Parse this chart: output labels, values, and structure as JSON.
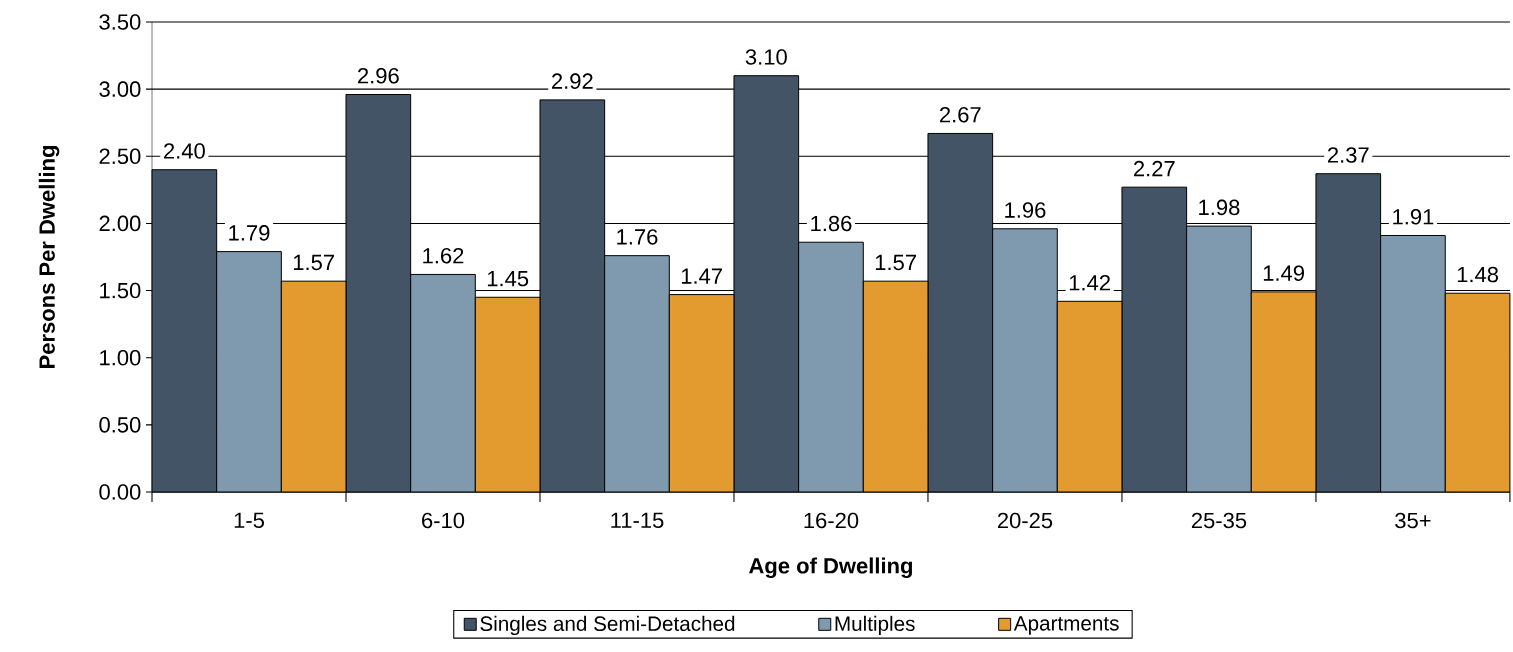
{
  "chart_data": {
    "type": "bar",
    "xlabel": "Age of Dwelling",
    "ylabel": "Persons Per Dwelling",
    "categories": [
      "1-5",
      "6-10",
      "11-15",
      "16-20",
      "20-25",
      "25-35",
      "35+"
    ],
    "series": [
      {
        "name": "Singles and Semi-Detached",
        "color": "#425466",
        "values": [
          2.4,
          2.96,
          2.92,
          3.1,
          2.67,
          2.27,
          2.37
        ],
        "value_labels": [
          "2.40",
          "2.96",
          "2.92",
          "3.10",
          "2.67",
          "2.27",
          "2.37"
        ]
      },
      {
        "name": "Multiples",
        "color": "#7f9aae",
        "values": [
          1.79,
          1.62,
          1.76,
          1.86,
          1.96,
          1.98,
          1.91
        ],
        "value_labels": [
          "1.79",
          "1.62",
          "1.76",
          "1.86",
          "1.96",
          "1.98",
          "1.91"
        ]
      },
      {
        "name": "Apartments",
        "color": "#e39b2f",
        "values": [
          1.57,
          1.45,
          1.47,
          1.57,
          1.42,
          1.49,
          1.48
        ],
        "value_labels": [
          "1.57",
          "1.45",
          "1.47",
          "1.57",
          "1.42",
          "1.49",
          "1.48"
        ]
      }
    ],
    "ylim": [
      0,
      3.5
    ],
    "yticks": [
      {
        "value": 0,
        "label": "0.00"
      },
      {
        "value": 0.5,
        "label": "0.50"
      },
      {
        "value": 1,
        "label": "1.00"
      },
      {
        "value": 1.5,
        "label": "1.50"
      },
      {
        "value": 2,
        "label": "2.00"
      },
      {
        "value": 2.5,
        "label": "2.50"
      },
      {
        "value": 3,
        "label": "3.00"
      },
      {
        "value": 3.5,
        "label": "3.50"
      }
    ],
    "grid": "y",
    "legend": "bottom"
  }
}
